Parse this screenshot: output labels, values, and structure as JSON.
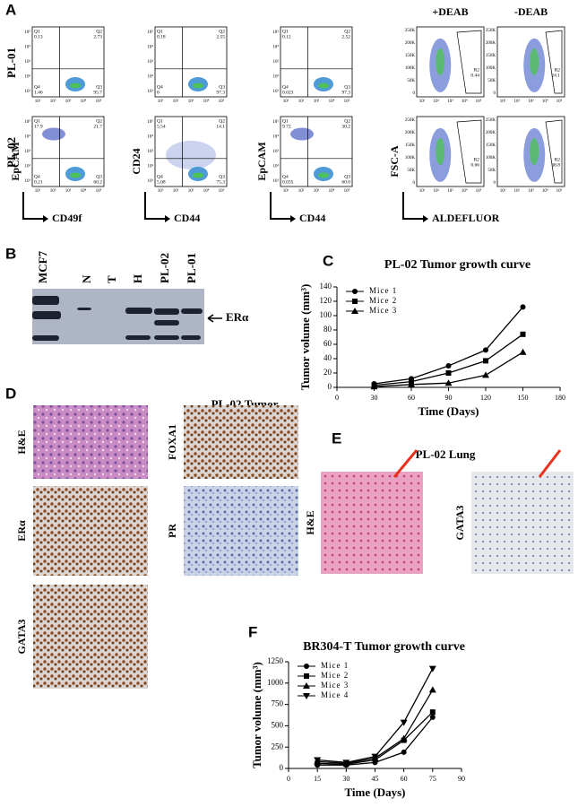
{
  "panel_labels": [
    "A",
    "B",
    "C",
    "D",
    "E",
    "F"
  ],
  "flow": {
    "rows": [
      "PL-01",
      "PL-02"
    ],
    "y_labels": [
      "EpCAM",
      "CD24",
      "EpCAM",
      "FSC-A"
    ],
    "x_labels": [
      "CD49f",
      "CD44",
      "CD44",
      "ALDEFLUOR"
    ],
    "quadrant_names": [
      "Q1",
      "Q2",
      "Q4",
      "Q3"
    ],
    "log_ticks": [
      "10⁵",
      "10⁴",
      "10³",
      "10²",
      "10¹"
    ],
    "linear_ticks": [
      "250K",
      "200K",
      "150K",
      "100K",
      "50K",
      "0"
    ],
    "quadrant_plots": [
      [
        [
          "0.13",
          "2.73",
          "1.46",
          "95.7"
        ],
        [
          "17.9",
          "21.7",
          "0.21",
          "60.2"
        ]
      ],
      [
        [
          "0.18",
          "2.55",
          "0",
          "97.3"
        ],
        [
          "5.54",
          "14.1",
          "5.08",
          "75.3"
        ]
      ],
      [
        [
          "0.12",
          "2.52",
          "0.023",
          "97.3"
        ],
        [
          "9.72",
          "30.2",
          "0.035",
          "60.0"
        ]
      ]
    ],
    "conditions": [
      "+DEAB",
      "-DEAB"
    ],
    "gate_name": "R2",
    "gate_values": [
      [
        "0.44",
        "24.1"
      ],
      [
        "0.66",
        "38.8"
      ]
    ]
  },
  "blot": {
    "lanes": [
      "MCF7",
      "N",
      "T",
      "H",
      "PL-02",
      "PL-01"
    ],
    "band_label": "ERα"
  },
  "histology": {
    "title": "PL-02 Tumor",
    "stains": [
      "H&E",
      "ERα",
      "GATA3",
      "FOXA1",
      "PR"
    ]
  },
  "lung": {
    "title": "PL-02 Lung",
    "stains": [
      "H&E",
      "GATA3"
    ]
  },
  "chart_data": [
    {
      "type": "line",
      "title": "PL-02 Tumor growth curve",
      "x_label": "Time (Days)",
      "y_label": "Tumor volume (mm³)",
      "x": [
        30,
        60,
        90,
        120,
        150
      ],
      "series": [
        {
          "name": "Mice 1",
          "marker": "circle",
          "color": "#000000",
          "values": [
            5,
            12,
            30,
            52,
            112
          ]
        },
        {
          "name": "Mice 2",
          "marker": "square",
          "color": "#000000",
          "values": [
            3,
            8,
            20,
            37,
            74
          ]
        },
        {
          "name": "Mice 3",
          "marker": "triangle",
          "color": "#000000",
          "values": [
            1,
            4,
            6,
            17,
            49
          ]
        }
      ],
      "xlim": [
        0,
        180
      ],
      "xticks": [
        0,
        30,
        60,
        90,
        120,
        150,
        180
      ],
      "ylim": [
        0,
        140
      ],
      "yticks": [
        0,
        20,
        40,
        60,
        80,
        100,
        120,
        140
      ]
    },
    {
      "type": "line",
      "title": "BR304-T Tumor growth curve",
      "x_label": "Time (Days)",
      "y_label": "Tumor volume (mm³)",
      "x": [
        15,
        30,
        45,
        60,
        75
      ],
      "series": [
        {
          "name": "Mice 1",
          "marker": "circle",
          "color": "#000000",
          "values": [
            40,
            40,
            70,
            190,
            600
          ]
        },
        {
          "name": "Mice 2",
          "marker": "square",
          "color": "#000000",
          "values": [
            60,
            50,
            100,
            330,
            660
          ]
        },
        {
          "name": "Mice 3",
          "marker": "triangle",
          "color": "#000000",
          "values": [
            80,
            60,
            120,
            350,
            920
          ]
        },
        {
          "name": "Mice 4",
          "marker": "triangle-down",
          "color": "#000000",
          "values": [
            100,
            70,
            140,
            540,
            1170
          ]
        }
      ],
      "xlim": [
        0,
        90
      ],
      "xticks": [
        0,
        15,
        30,
        45,
        60,
        75,
        90
      ],
      "ylim": [
        0,
        1250
      ],
      "yticks": [
        0,
        250,
        500,
        750,
        1000,
        1250
      ]
    }
  ]
}
